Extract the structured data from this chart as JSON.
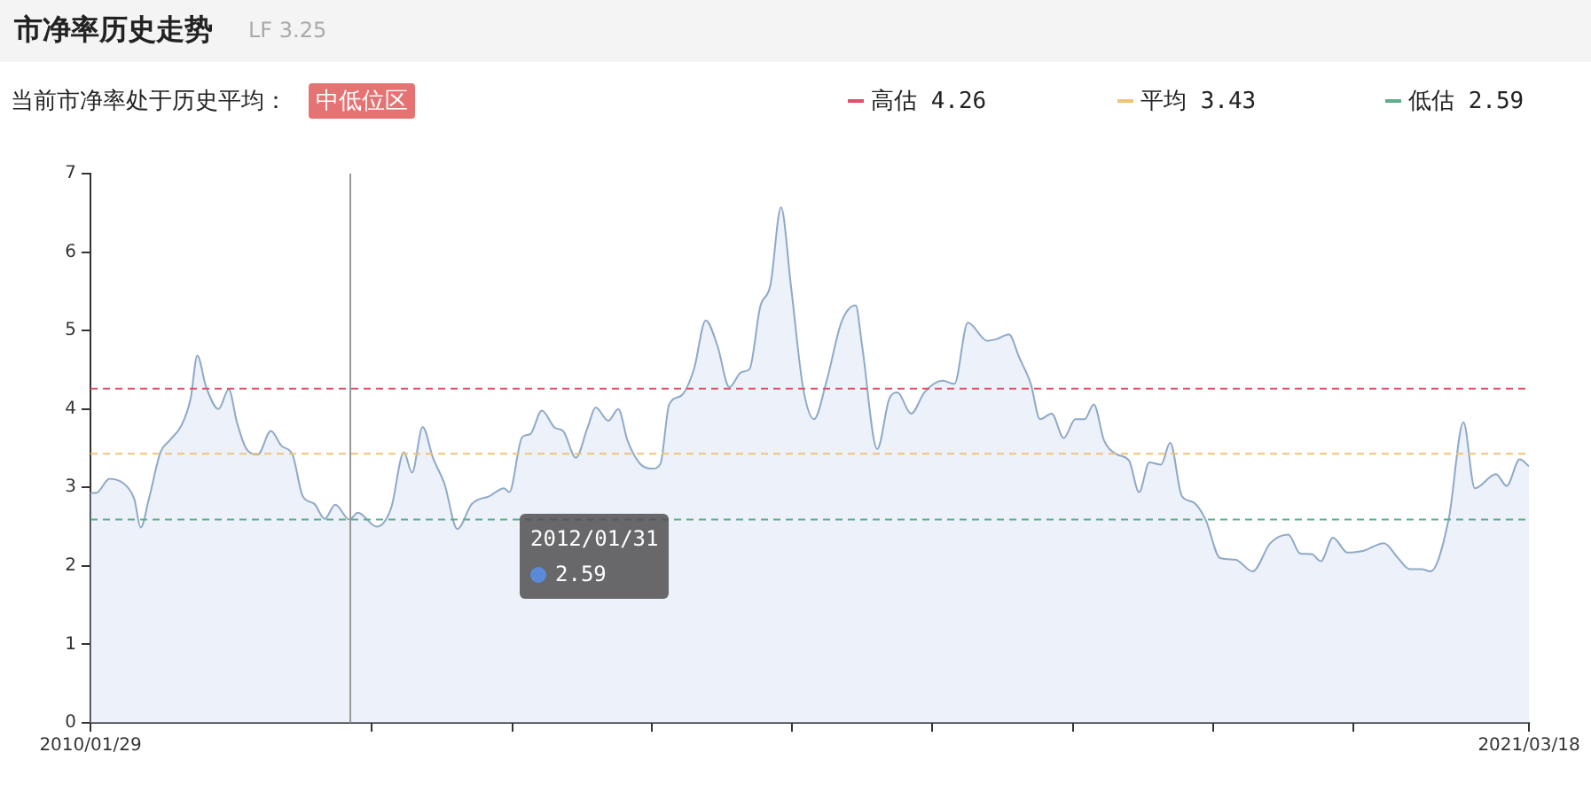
{
  "chart_data": {
    "type": "area",
    "title": "市净率历史走势",
    "subtitle": "LF 3.25",
    "annotations": [
      "当前市净率处于历史平均：",
      "中低位区",
      "2012/01/31",
      "2.59"
    ],
    "legend": "top right",
    "x": [
      "2010-01-29",
      "2010-02-14",
      "2010-03-24",
      "2010-05-15",
      "2010-06-02",
      "2010-06-20",
      "2010-07-13",
      "2010-08-15",
      "2010-09-10",
      "2010-10-13",
      "2010-11-08",
      "2010-11-27",
      "2010-12-22",
      "2011-01-26",
      "2011-02-24",
      "2011-03-19",
      "2011-04-15",
      "2011-05-17",
      "2011-06-23",
      "2011-07-23",
      "2011-08-23",
      "2011-09-21",
      "2011-10-24",
      "2011-11-22",
      "2011-12-22",
      "2012-01-31",
      "2012-02-24",
      "2012-04-17",
      "2012-05-28",
      "2012-07-03",
      "2012-07-26",
      "2012-08-25",
      "2012-09-23",
      "2012-10-26",
      "2012-12-01",
      "2013-01-11",
      "2013-03-02",
      "2013-04-12",
      "2013-04-27",
      "2013-06-02",
      "2013-06-25",
      "2013-07-28",
      "2013-09-03",
      "2013-09-26",
      "2013-11-01",
      "2013-12-04",
      "2013-12-27",
      "2014-02-01",
      "2014-03-01",
      "2014-03-27",
      "2014-05-02",
      "2014-06-05",
      "2014-06-28",
      "2014-07-23",
      "2014-08-26",
      "2014-10-01",
      "2014-11-03",
      "2014-12-06",
      "2015-01-09",
      "2015-02-12",
      "2015-03-07",
      "2015-04-06",
      "2015-05-05",
      "2015-06-04",
      "2015-07-02",
      "2015-08-05",
      "2015-09-05",
      "2015-10-11",
      "2015-11-22",
      "2016-01-01",
      "2016-01-19",
      "2016-03-02",
      "2016-04-05",
      "2016-04-28",
      "2016-06-06",
      "2016-07-13",
      "2016-09-03",
      "2016-10-06",
      "2016-11-13",
      "2017-01-07",
      "2017-02-02",
      "2017-03-09",
      "2017-04-07",
      "2017-05-10",
      "2017-06-05",
      "2017-07-08",
      "2017-08-11",
      "2017-09-13",
      "2017-10-09",
      "2017-11-04",
      "2017-12-03",
      "2018-01-09",
      "2018-02-12",
      "2018-03-12",
      "2018-04-10",
      "2018-05-13",
      "2018-06-08",
      "2018-07-11",
      "2018-08-13",
      "2018-09-16",
      "2018-10-27",
      "2018-12-09",
      "2019-01-27",
      "2019-03-18",
      "2019-05-08",
      "2019-06-10",
      "2019-07-13",
      "2019-08-08",
      "2019-09-11",
      "2019-10-22",
      "2019-12-04",
      "2020-02-02",
      "2020-03-13",
      "2020-04-15",
      "2020-05-18",
      "2020-06-13",
      "2020-08-03",
      "2020-09-14",
      "2020-10-16",
      "2020-12-15",
      "2021-01-14",
      "2021-02-20",
      "2021-03-18"
    ],
    "series": [
      {
        "color": "#8ea9c8",
        "values": [
          2.93,
          2.93,
          3.11,
          3.0,
          2.85,
          2.49,
          2.85,
          3.45,
          3.6,
          3.79,
          4.13,
          4.68,
          4.28,
          4.0,
          4.25,
          3.83,
          3.49,
          3.42,
          3.72,
          3.53,
          3.42,
          2.89,
          2.79,
          2.6,
          2.78,
          2.59,
          2.68,
          2.5,
          2.74,
          3.45,
          3.19,
          3.77,
          3.38,
          3.04,
          2.47,
          2.79,
          2.89,
          2.99,
          2.94,
          3.64,
          3.68,
          3.98,
          3.76,
          3.72,
          3.38,
          3.76,
          4.02,
          3.85,
          4.0,
          3.6,
          3.3,
          3.24,
          3.3,
          4.06,
          4.17,
          4.51,
          5.13,
          4.81,
          4.28,
          4.47,
          4.51,
          5.3,
          5.58,
          6.57,
          5.57,
          4.28,
          3.87,
          4.36,
          5.11,
          5.32,
          4.81,
          3.49,
          4.13,
          4.21,
          3.94,
          4.21,
          4.36,
          4.32,
          5.1,
          4.87,
          4.89,
          4.95,
          4.66,
          4.32,
          3.87,
          3.94,
          3.63,
          3.87,
          3.87,
          4.06,
          3.6,
          3.42,
          3.34,
          2.94,
          3.32,
          3.29,
          3.57,
          2.89,
          2.81,
          2.59,
          2.1,
          2.08,
          1.93,
          2.29,
          2.4,
          2.16,
          2.15,
          2.06,
          2.36,
          2.17,
          2.19,
          2.29,
          2.1,
          1.96,
          1.96,
          1.93,
          2.59,
          3.83,
          2.99,
          3.17,
          3.02,
          3.36,
          3.27
        ]
      }
    ],
    "xlim": [
      "2010-01-29",
      "2021-03-18"
    ],
    "xticks": [
      {
        "value": "2010-01-29",
        "label": "2010/01/29"
      },
      {
        "value": "2012-04-02",
        "label": null
      },
      {
        "value": "2013-05-07",
        "label": null
      },
      {
        "value": "2014-06-03",
        "label": null
      },
      {
        "value": "2015-07-04",
        "label": null
      },
      {
        "value": "2016-08-05",
        "label": null
      },
      {
        "value": "2017-09-06",
        "label": null
      },
      {
        "value": "2018-10-07",
        "label": null
      },
      {
        "value": "2019-11-08",
        "label": null
      },
      {
        "value": "2021-03-18",
        "label": "2021/03/18"
      }
    ],
    "ylim": [
      0,
      7
    ],
    "yticks": [
      0,
      1,
      2,
      3,
      4,
      5,
      6,
      7
    ],
    "grid": false,
    "ref_lines": [
      {
        "axis": "y",
        "value": 4.26,
        "label": "高估 4.26",
        "color": "#d9536a",
        "line_style": "dashed"
      },
      {
        "axis": "y",
        "value": 3.43,
        "label": "平均 3.43",
        "color": "#f0c27a",
        "line_style": "dashed"
      },
      {
        "axis": "y",
        "value": 2.59,
        "label": "低估 2.59",
        "color": "#5fae8c",
        "line_style": "dashed"
      },
      {
        "axis": "x",
        "value": "2012-01-31",
        "color": "#999999",
        "line_style": "solid"
      }
    ]
  }
}
